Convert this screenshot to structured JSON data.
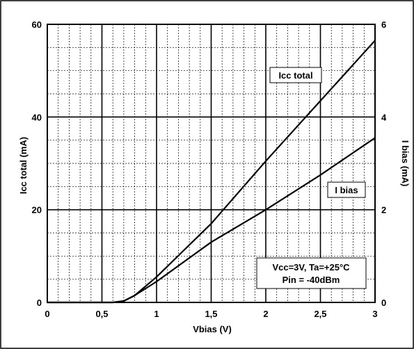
{
  "chart_data": {
    "type": "line",
    "xlabel": "Vbias (V)",
    "ylabel_left": "Icc total (mA)",
    "ylabel_right": "I bias (mA)",
    "xlim": [
      0,
      3
    ],
    "ylim_left": [
      0,
      60
    ],
    "ylim_right": [
      0,
      6
    ],
    "x_ticks": [
      0,
      0.5,
      1,
      1.5,
      2,
      2.5,
      3
    ],
    "x_tick_labels": [
      "0",
      "0,5",
      "1",
      "1,5",
      "2",
      "2,5",
      "3"
    ],
    "y_left_ticks": [
      0,
      20,
      40,
      60
    ],
    "y_left_tick_labels": [
      "0",
      "20",
      "40",
      "60"
    ],
    "y_right_ticks": [
      0,
      2,
      4,
      6
    ],
    "y_right_tick_labels": [
      "0",
      "2",
      "4",
      "6"
    ],
    "grid": true,
    "series": [
      {
        "name": "Icc total",
        "axis": "left",
        "x": [
          0,
          0.3,
          0.6,
          0.7,
          0.8,
          1.0,
          1.5,
          2.0,
          2.5,
          3.0
        ],
        "values": [
          0,
          0,
          0,
          0.3,
          1.5,
          5.5,
          17,
          30.5,
          43.5,
          56.5
        ]
      },
      {
        "name": "I bias",
        "axis": "right",
        "x": [
          0,
          0.3,
          0.6,
          0.7,
          0.8,
          1.0,
          1.5,
          2.0,
          2.5,
          3.0
        ],
        "values": [
          0,
          0,
          0,
          0.03,
          0.15,
          0.45,
          1.3,
          2.0,
          2.75,
          3.55
        ]
      }
    ],
    "annotations": {
      "conditions_line1": "Vcc=3V, Ta=+25°C",
      "conditions_line2": "Pin = -40dBm"
    }
  }
}
